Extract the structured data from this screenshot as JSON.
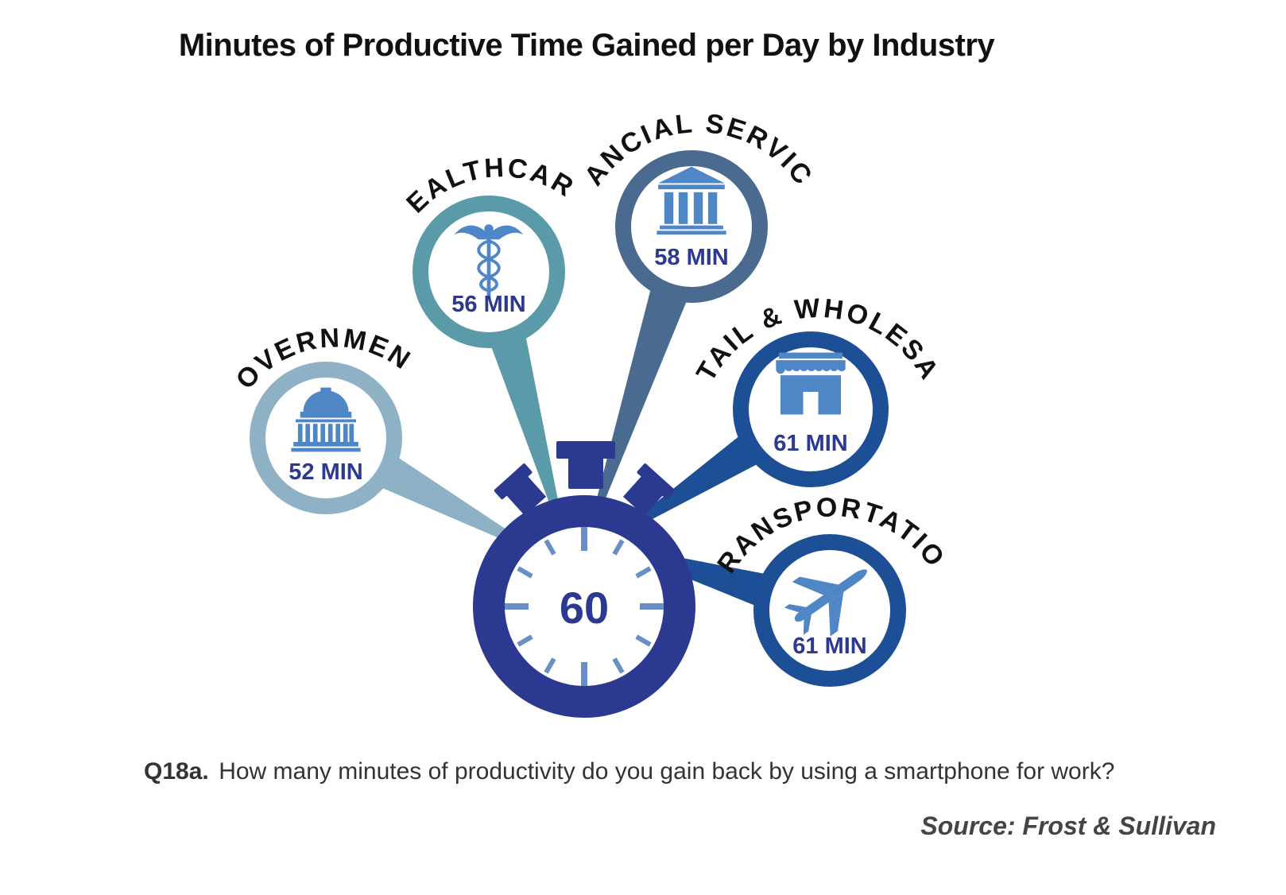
{
  "title": "Minutes of Productive Time Gained per Day by Industry",
  "question": {
    "id": "Q18a.",
    "text": "How many minutes of productivity do you gain back by using a smartphone for work?"
  },
  "source": "Source: Frost & Sullivan",
  "colors": {
    "stopwatch": "#2b3990",
    "ticks": "#6a8fc7",
    "value_text": "#2b3990"
  },
  "chart_data": {
    "type": "bar",
    "center_value": "60",
    "categories": [
      "GOVERNMENT",
      "HEALTHCARE",
      "FINANCIAL SERVICES",
      "RETAIL & WHOLESALE",
      "TRANSPORTATION"
    ],
    "values": [
      52,
      56,
      58,
      61,
      61
    ],
    "value_labels": [
      "52 MIN",
      "56 MIN",
      "58 MIN",
      "61 MIN",
      "61 MIN"
    ],
    "icons": [
      "capitol-icon",
      "caduceus-icon",
      "bank-icon",
      "storefront-icon",
      "airplane-icon"
    ],
    "ring_colors": [
      "#8fb1c6",
      "#5b9aa9",
      "#4a6a8f",
      "#1d4f96",
      "#1d4f96"
    ],
    "icon_colors": [
      "#4f86c6",
      "#4f86c6",
      "#4f86c6",
      "#4f86c6",
      "#4f86c6"
    ]
  }
}
